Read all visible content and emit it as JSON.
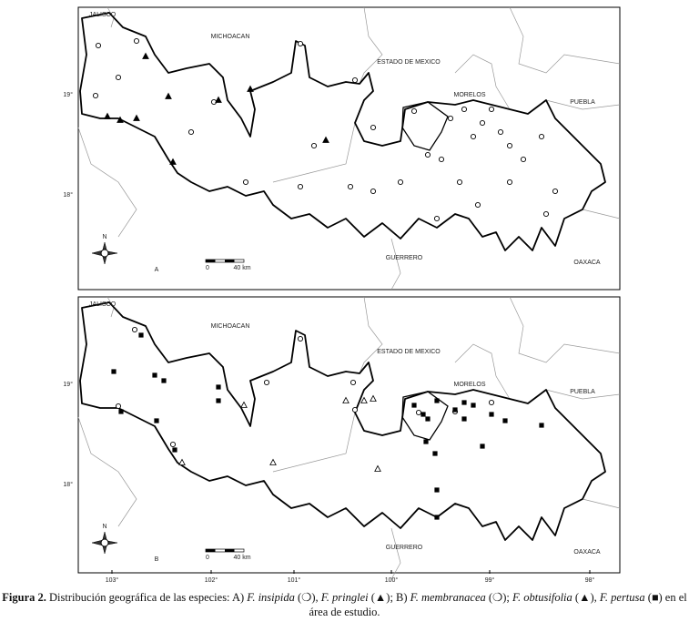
{
  "panels": [
    {
      "letter": "A",
      "north": "N",
      "scale": [
        "0",
        "40 km"
      ],
      "latitudes": [
        "19°",
        "18°"
      ],
      "labels": [
        "JALISCO",
        "MICHOACAN",
        "ESTADO DE MEXICO",
        "MORELOS",
        "PUEBLA",
        "GUERRERO",
        "OAXACA"
      ]
    },
    {
      "letter": "B",
      "north": "N",
      "scale": [
        "0",
        "40 km"
      ],
      "latitudes": [
        "19°",
        "18°"
      ],
      "labels": [
        "JALISCO",
        "MICHOACAN",
        "ESTADO DE MEXICO",
        "MORELOS",
        "PUEBLA",
        "GUERRERO",
        "OAXACA"
      ]
    }
  ],
  "longitudes": [
    "103°",
    "102°",
    "101°",
    "100°",
    "99°",
    "98°"
  ],
  "caption": {
    "parts": [
      "Figura 2.",
      " Distribución geográfica de las especies: A) ",
      "F. insipida",
      " (❍), ",
      "F. pringlei",
      " (▲); B) ",
      "F. membranacea",
      " (❍); ",
      "F. obtusifolia",
      " (▲), ",
      "F. pertusa",
      " (■) en el área de estudio."
    ]
  }
}
